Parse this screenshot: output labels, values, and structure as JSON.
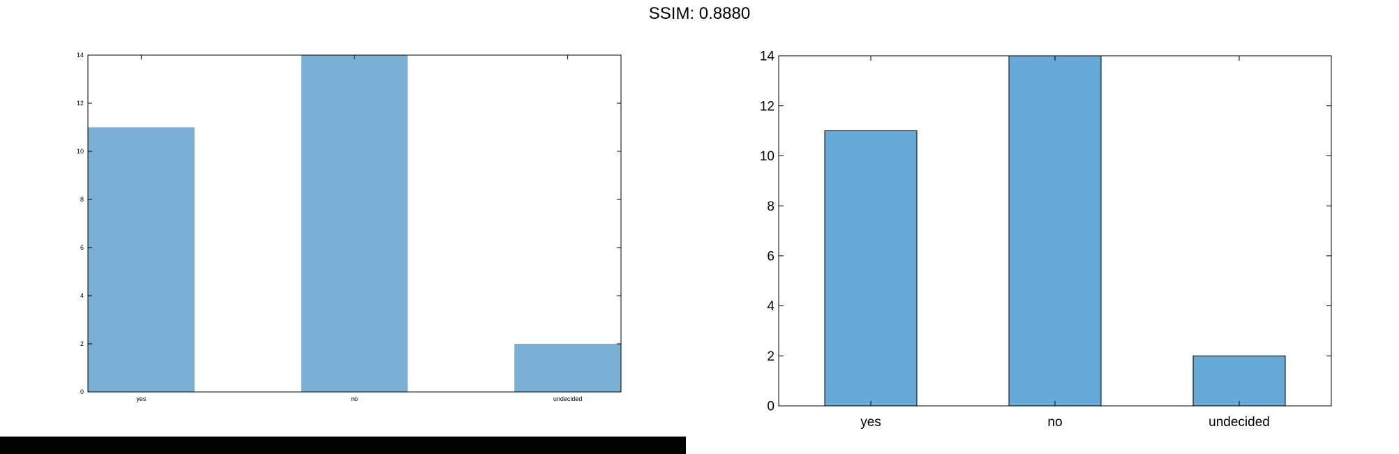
{
  "title": "SSIM: 0.8880",
  "chart_data": [
    {
      "type": "bar",
      "categories": [
        "yes",
        "no",
        "undecided"
      ],
      "values": [
        11,
        14,
        2
      ],
      "ylim": [
        0,
        14
      ],
      "yticks": [
        0,
        2,
        4,
        6,
        8,
        10,
        12,
        14
      ],
      "bar_color": "#7aaed3",
      "bar_outline": "none",
      "bar_width": 0.5,
      "grid": false
    },
    {
      "type": "bar",
      "categories": [
        "yes",
        "no",
        "undecided"
      ],
      "values": [
        11,
        14,
        2
      ],
      "ylim": [
        0,
        14
      ],
      "yticks": [
        0,
        2,
        4,
        6,
        8,
        10,
        12,
        14
      ],
      "bar_color": "#67aad7",
      "bar_outline": "#000000",
      "bar_width": 0.5,
      "grid": false
    }
  ]
}
